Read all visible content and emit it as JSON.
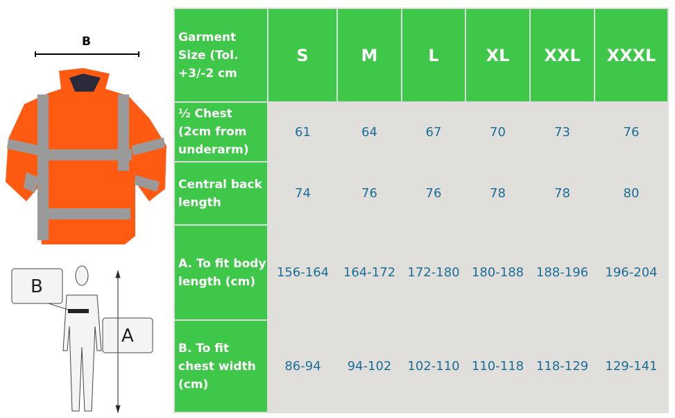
{
  "diagram": {
    "jacket_label": "B",
    "figure_label_b": "B",
    "figure_label_a": "A"
  },
  "table": {
    "header_label": "Garment Size (Tol. +3/-2 cm",
    "sizes": [
      "S",
      "M",
      "L",
      "XL",
      "XXL",
      "XXXL"
    ],
    "rows": [
      {
        "label": "½ Chest (2cm from underarm)",
        "values": [
          "61",
          "64",
          "67",
          "70",
          "73",
          "76"
        ]
      },
      {
        "label": "Central back length",
        "values": [
          "74",
          "76",
          "76",
          "78",
          "78",
          "80"
        ]
      },
      {
        "label": "A. To fit body length (cm)",
        "values": [
          "156-164",
          "164-172",
          "172-180",
          "180-188",
          "188-196",
          "196-204"
        ]
      },
      {
        "label": "B. To fit chest width (cm)",
        "values": [
          "86-94",
          "94-102",
          "102-110",
          "110-118",
          "118-129",
          "129-141"
        ]
      }
    ]
  },
  "colors": {
    "header_green": "#3fc74a",
    "cell_gray": "#e0dfdc",
    "value_text": "#1a6e96",
    "jacket_orange": "#ff5a12",
    "reflective": "#9a9a9a"
  }
}
